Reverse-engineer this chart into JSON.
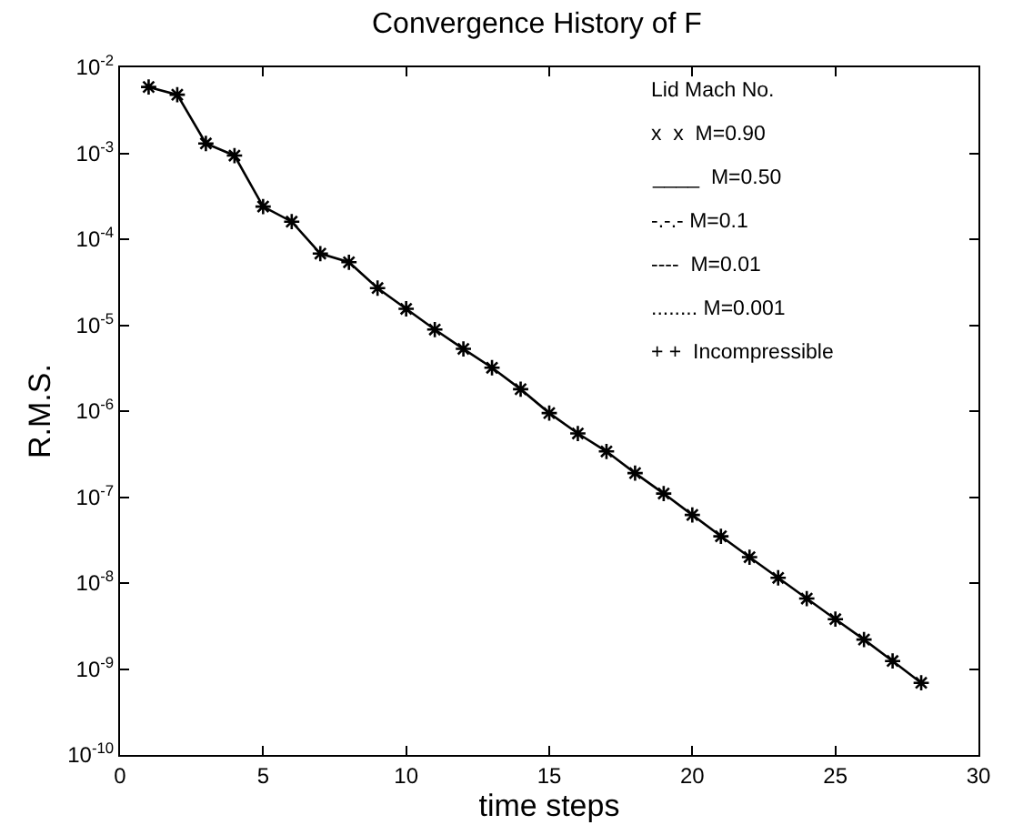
{
  "chart_data": {
    "type": "line",
    "title": "Convergence History of F",
    "xlabel": "time steps",
    "ylabel": "R.M.S.",
    "x": [
      1,
      2,
      3,
      4,
      5,
      6,
      7,
      8,
      9,
      10,
      11,
      12,
      13,
      14,
      15,
      16,
      17,
      18,
      19,
      20,
      21,
      22,
      23,
      24,
      25,
      26,
      27,
      28
    ],
    "series": [
      {
        "color": "#000000",
        "values": [
          0.0059,
          0.0048,
          0.0013,
          0.00094,
          0.00024,
          0.00016,
          6.8e-05,
          5.4e-05,
          2.7e-05,
          1.55e-05,
          8.9e-06,
          5.3e-06,
          3.2e-06,
          1.8e-06,
          9.5e-07,
          5.5e-07,
          3.4e-07,
          1.9e-07,
          1.1e-07,
          6.2e-08,
          3.5e-08,
          2e-08,
          1.15e-08,
          6.6e-09,
          3.8e-09,
          2.2e-09,
          1.24e-09,
          6.9e-10
        ]
      }
    ],
    "xlim": [
      0,
      30
    ],
    "xticks": [
      0,
      5,
      10,
      15,
      20,
      25,
      30
    ],
    "ylim": [
      1e-10,
      0.01
    ],
    "yticks": [
      {
        "value": 1e-10,
        "label": "10$^{-10}$"
      },
      {
        "value": 1e-09,
        "label": "10$^{-9}$"
      },
      {
        "value": 1e-08,
        "label": "10$^{-8}$"
      },
      {
        "value": 1e-07,
        "label": "10$^{-7}$"
      },
      {
        "value": 1e-06,
        "label": "10$^{-6}$"
      },
      {
        "value": 1e-05,
        "label": "10$^{-5}$"
      },
      {
        "value": 0.0001,
        "label": "10$^{-4}$"
      },
      {
        "value": 0.001,
        "label": "10$^{-3}$"
      },
      {
        "value": 0.01,
        "label": "10$^{-2}$"
      }
    ],
    "log": "y",
    "marker": "cross",
    "line_style": "solid",
    "annotations": [
      "Lid Mach No.",
      "x  x  M=0.90",
      "____  M=0.50",
      "-.-.- M=0.1",
      "----  M=0.01",
      "........ M=0.001",
      "+ +  Incompressible"
    ]
  }
}
